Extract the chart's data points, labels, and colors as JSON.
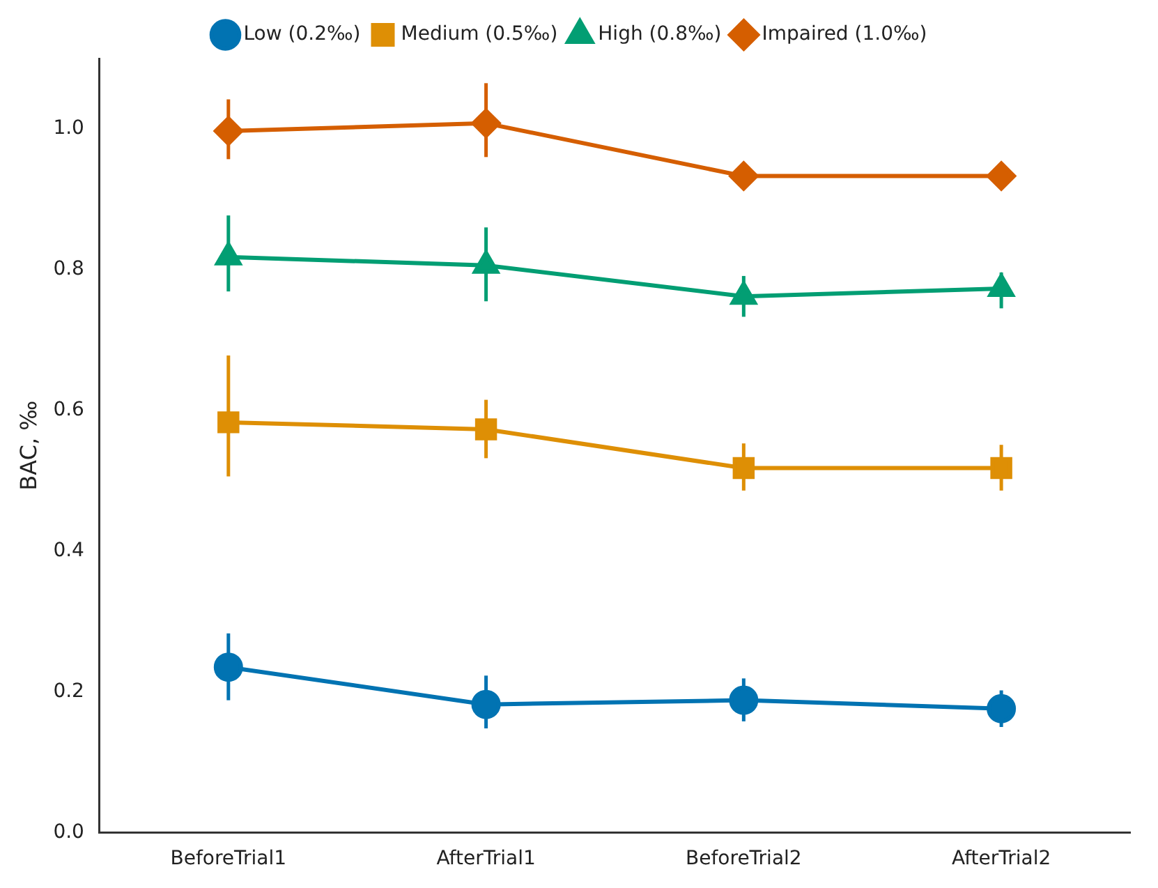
{
  "chart_data": {
    "type": "line",
    "ylabel": "BAC, ‰",
    "categories": [
      "BeforeTrial1",
      "AfterTrial1",
      "BeforeTrial2",
      "AfterTrial2"
    ],
    "ylim": [
      0,
      1.1
    ],
    "yticks": [
      {
        "value": 0,
        "label": "0.0"
      },
      0.2,
      0.4,
      0.6,
      0.8,
      {
        "value": 1,
        "label": "1.0"
      }
    ],
    "grid": false,
    "legend": "top",
    "series": [
      {
        "name": "Low (0.2‰)",
        "color": "#0173b2",
        "marker": "circle",
        "values": [
          0.235,
          0.182,
          0.188,
          0.176
        ],
        "errors": [
          [
            0.188,
            0.283
          ],
          [
            0.148,
            0.223
          ],
          [
            0.158,
            0.219
          ],
          [
            0.15,
            0.202
          ]
        ]
      },
      {
        "name": "Medium (0.5‰)",
        "color": "#de8f05",
        "marker": "square",
        "values": [
          0.583,
          0.573,
          0.518,
          0.518
        ],
        "errors": [
          [
            0.506,
            0.678
          ],
          [
            0.532,
            0.615
          ],
          [
            0.486,
            0.553
          ],
          [
            0.486,
            0.551
          ]
        ]
      },
      {
        "name": "High (0.8‰)",
        "color": "#029e73",
        "marker": "triangle",
        "values": [
          0.818,
          0.806,
          0.762,
          0.773
        ],
        "errors": [
          [
            0.769,
            0.877
          ],
          [
            0.755,
            0.86
          ],
          [
            0.733,
            0.791
          ],
          [
            0.745,
            0.796
          ]
        ]
      },
      {
        "name": "Impaired (1.0‰)",
        "color": "#d55e00",
        "marker": "diamond",
        "values": [
          0.997,
          1.008,
          0.933,
          0.933
        ],
        "errors": [
          [
            0.957,
            1.042
          ],
          [
            0.96,
            1.065
          ],
          [
            0.92,
            0.945
          ],
          [
            0.92,
            0.945
          ]
        ]
      }
    ]
  }
}
